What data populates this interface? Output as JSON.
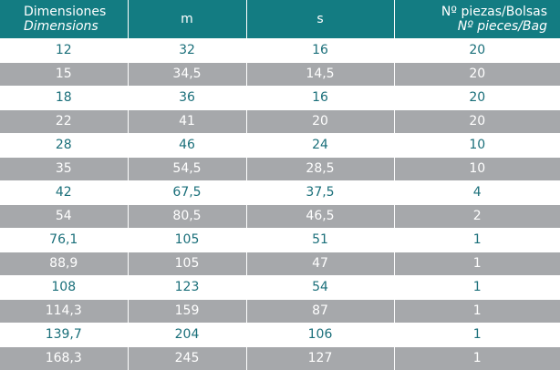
{
  "table": {
    "header": [
      [
        "Dimensiones",
        "Dimensions"
      ],
      [
        "m"
      ],
      [
        "s"
      ],
      [
        "Nº piezas/Bolsas",
        "Nº pieces/Bag"
      ]
    ],
    "rows": [
      [
        "12",
        "32",
        "16",
        "20"
      ],
      [
        "15",
        "34,5",
        "14,5",
        "20"
      ],
      [
        "18",
        "36",
        "16",
        "20"
      ],
      [
        "22",
        "41",
        "20",
        "20"
      ],
      [
        "28",
        "46",
        "24",
        "10"
      ],
      [
        "35",
        "54,5",
        "28,5",
        "10"
      ],
      [
        "42",
        "67,5",
        "37,5",
        "4"
      ],
      [
        "54",
        "80,5",
        "46,5",
        "2"
      ],
      [
        "76,1",
        "105",
        "51",
        "1"
      ],
      [
        "88,9",
        "105",
        "47",
        "1"
      ],
      [
        "108",
        "123",
        "54",
        "1"
      ],
      [
        "114,3",
        "159",
        "87",
        "1"
      ],
      [
        "139,7",
        "204",
        "106",
        "1"
      ],
      [
        "168,3",
        "245",
        "127",
        "1"
      ]
    ]
  }
}
